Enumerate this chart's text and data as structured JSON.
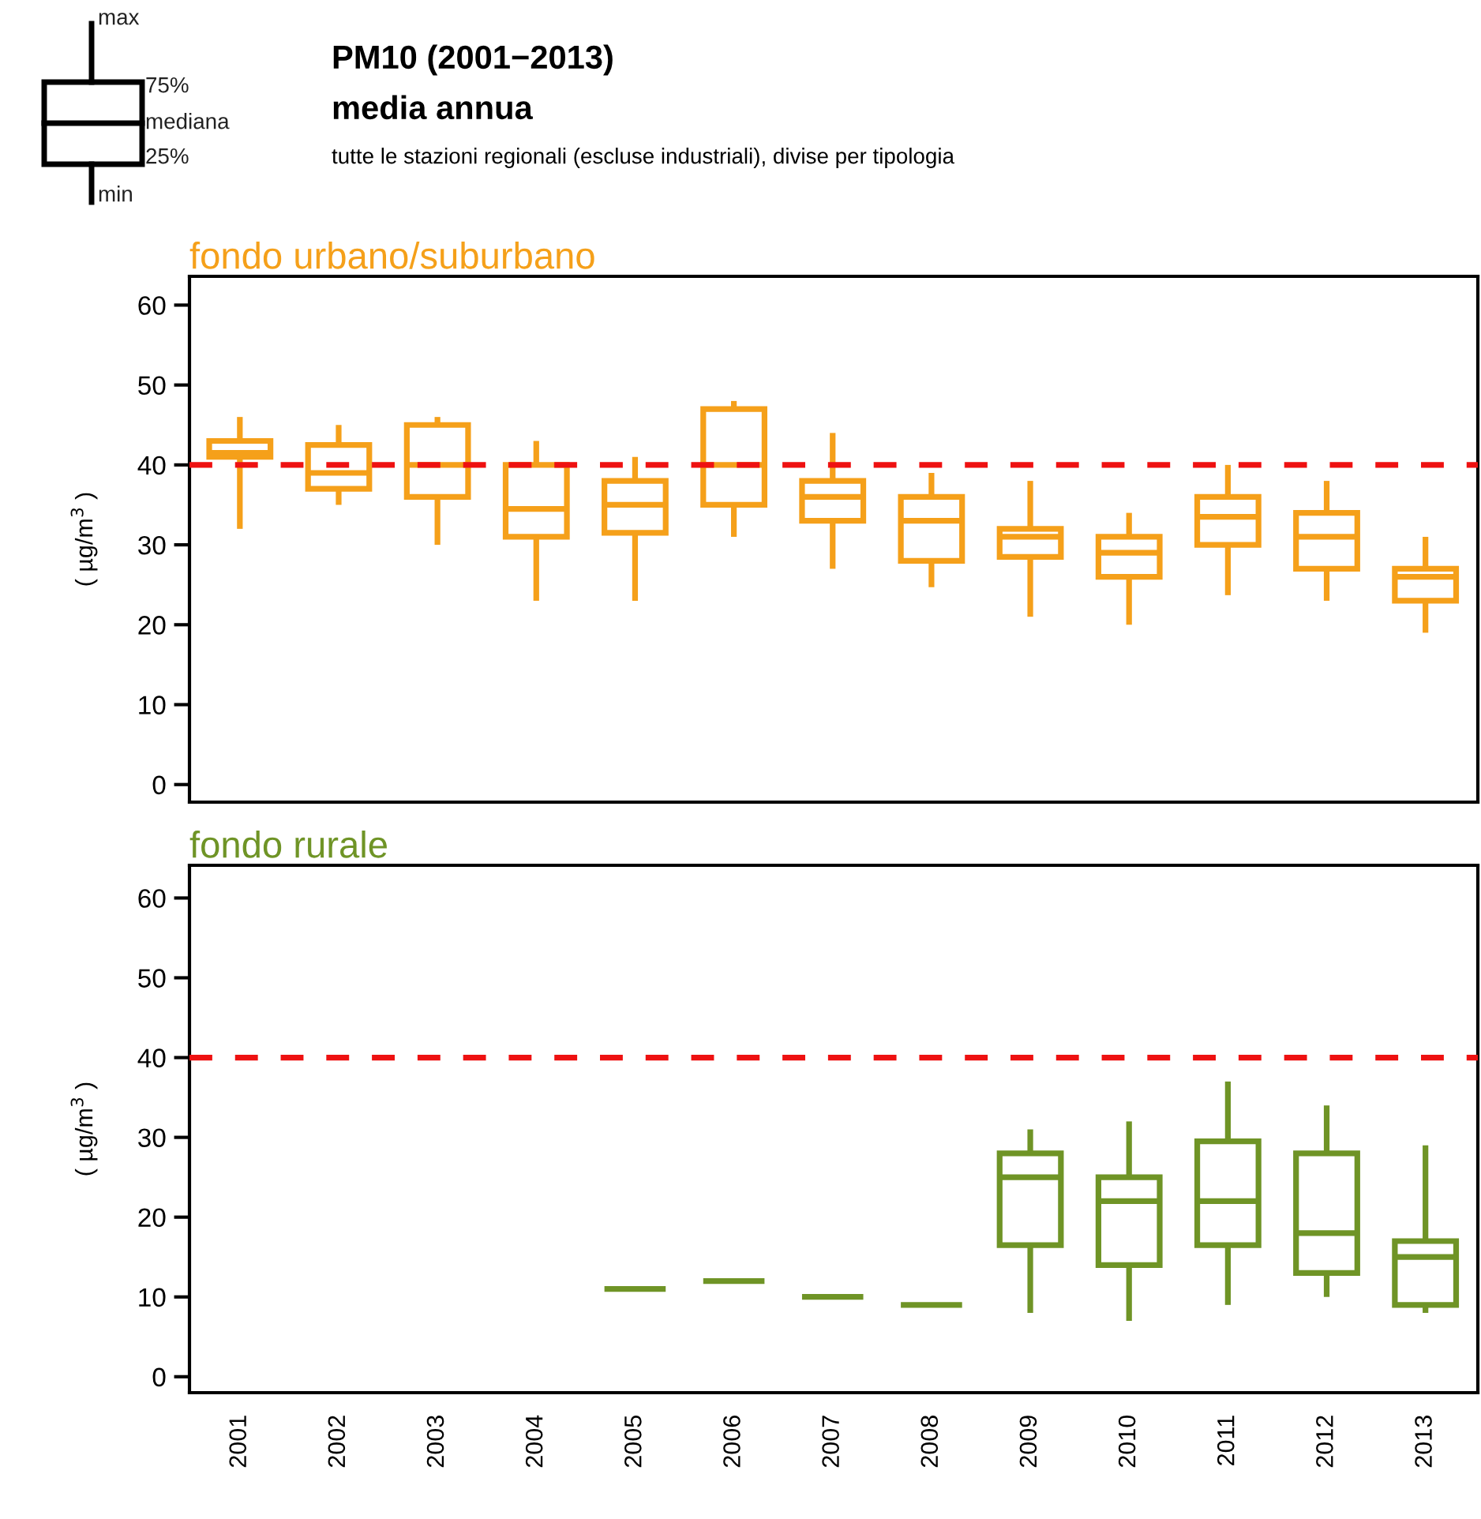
{
  "chart_data": [
    {
      "type": "other",
      "title": "PM10 (2001−2013)",
      "subtitle": "media annua",
      "annotations": [
        "tutte le stazioni regionali (escluse industriali), divise per tipologia",
        "max",
        "75%",
        "mediana",
        "25%",
        "min"
      ]
    },
    {
      "type": "box",
      "title": "fondo urbano/suburbano",
      "ylabel": "( µg/m$^{3}$ )",
      "categories": [
        "2001",
        "2002",
        "2003",
        "2004",
        "2005",
        "2006",
        "2007",
        "2008",
        "2009",
        "2010",
        "2011",
        "2012",
        "2013"
      ],
      "tick_labels": "y",
      "ylim": [
        -2.2,
        63.6
      ],
      "yticks": [
        0,
        10,
        20,
        30,
        40,
        50,
        60
      ],
      "series": [
        {
          "color": "#f5a01a",
          "boxes": [
            {
              "low": 32,
              "q1": 41,
              "median": 41.5,
              "q3": 43,
              "high": 46
            },
            {
              "low": 35,
              "q1": 37,
              "median": 39,
              "q3": 42.5,
              "high": 45
            },
            {
              "low": 30,
              "q1": 36,
              "median": 40,
              "q3": 45,
              "high": 46
            },
            {
              "low": 23,
              "q1": 31,
              "median": 34.5,
              "q3": 40,
              "high": 43
            },
            {
              "low": 23,
              "q1": 31.5,
              "median": 35,
              "q3": 38,
              "high": 41
            },
            {
              "low": 31,
              "q1": 35,
              "median": 40,
              "q3": 47,
              "high": 48
            },
            {
              "low": 27,
              "q1": 33,
              "median": 36,
              "q3": 38,
              "high": 44
            },
            {
              "low": 24.7,
              "q1": 28,
              "median": 33,
              "q3": 36,
              "high": 39
            },
            {
              "low": 21,
              "q1": 28.5,
              "median": 31,
              "q3": 32,
              "high": 38
            },
            {
              "low": 20,
              "q1": 26,
              "median": 29,
              "q3": 31,
              "high": 34
            },
            {
              "low": 23.7,
              "q1": 30,
              "median": 33.5,
              "q3": 36,
              "high": 40
            },
            {
              "low": 23,
              "q1": 27,
              "median": 31,
              "q3": 34,
              "high": 38
            },
            {
              "low": 19,
              "q1": 23,
              "median": 26,
              "q3": 27,
              "high": 31
            }
          ]
        }
      ],
      "ref_lines": [
        {
          "axis": "y",
          "value": 40,
          "color": "#ee1111",
          "line_style": "dashed"
        }
      ],
      "grid": false
    },
    {
      "type": "box",
      "title": "fondo rurale",
      "ylabel": "( µg/m$^{3}$ )",
      "categories": [
        "2001",
        "2002",
        "2003",
        "2004",
        "2005",
        "2006",
        "2007",
        "2008",
        "2009",
        "2010",
        "2011",
        "2012",
        "2013"
      ],
      "ylim": [
        -2.0,
        64.1
      ],
      "yticks": [
        0,
        10,
        20,
        30,
        40,
        50,
        60
      ],
      "series": [
        {
          "color": "#6f9426",
          "boxes": [
            null,
            null,
            null,
            null,
            {
              "low": 11,
              "q1": 11,
              "median": 11,
              "q3": 11,
              "high": 11
            },
            {
              "low": 12,
              "q1": 12,
              "median": 12,
              "q3": 12,
              "high": 12
            },
            {
              "low": 10,
              "q1": 10,
              "median": 10,
              "q3": 10,
              "high": 10
            },
            {
              "low": 9,
              "q1": 9,
              "median": 9,
              "q3": 9,
              "high": 9
            },
            {
              "low": 8,
              "q1": 16.5,
              "median": 25,
              "q3": 28,
              "high": 31
            },
            {
              "low": 7,
              "q1": 14,
              "median": 22,
              "q3": 25,
              "high": 32
            },
            {
              "low": 9,
              "q1": 16.5,
              "median": 22,
              "q3": 29.5,
              "high": 37
            },
            {
              "low": 10,
              "q1": 13,
              "median": 18,
              "q3": 28,
              "high": 34
            },
            {
              "low": 8,
              "q1": 9,
              "median": 15,
              "q3": 17,
              "high": 29
            }
          ]
        }
      ],
      "ref_lines": [
        {
          "axis": "y",
          "value": 40,
          "color": "#ee1111",
          "line_style": "dashed"
        }
      ],
      "grid": false
    }
  ]
}
